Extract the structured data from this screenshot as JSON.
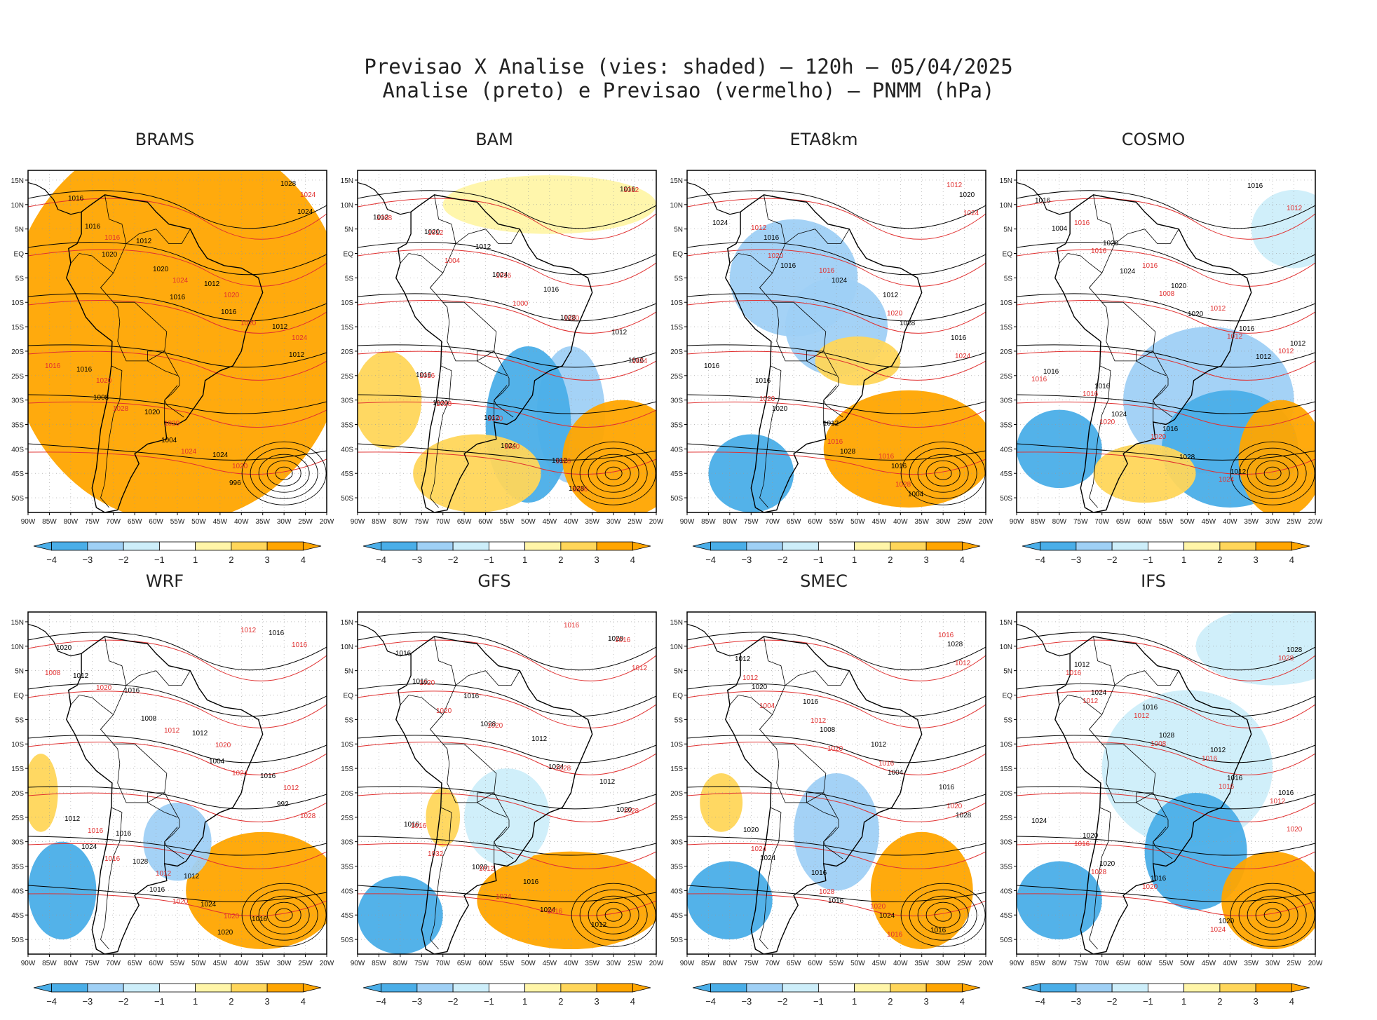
{
  "header": {
    "line1": "Previsao X Analise (vies: shaded) – 120h – 05/04/2025",
    "line2": "Analise (preto) e Previsao (vermelho) – PNMM (hPa)"
  },
  "lon_labels": [
    "90W",
    "85W",
    "80W",
    "75W",
    "70W",
    "65W",
    "60W",
    "55W",
    "50W",
    "45W",
    "40W",
    "35W",
    "30W",
    "25W",
    "20W"
  ],
  "lat_labels": [
    "15N",
    "10N",
    "5N",
    "EQ",
    "5S",
    "10S",
    "15S",
    "20S",
    "25S",
    "30S",
    "35S",
    "40S",
    "45S",
    "50S"
  ],
  "colorbar": {
    "labels": [
      "−4",
      "−3",
      "−2",
      "−1",
      "1",
      "2",
      "3",
      "4"
    ],
    "colors": [
      "#4aaee8",
      "#9fd0f5",
      "#cdeefa",
      "#ffffff",
      "#fff5a8",
      "#ffd65a",
      "#ffa500"
    ]
  },
  "legend": {
    "analysis_color": "#000000",
    "forecast_color": "#e03030"
  },
  "panels": [
    {
      "title": "BRAMS",
      "black_labels": [
        "1016",
        "1012",
        "1012",
        "1012",
        "1016",
        "1020",
        "1024",
        "1028",
        "1016",
        "1020",
        "1016",
        "1012",
        "1008",
        "1004",
        "996",
        "1024",
        "1020",
        "1016"
      ],
      "red_labels": [
        "1020",
        "1024",
        "1020",
        "1020",
        "1020",
        "1024",
        "1016",
        "1024",
        "1020",
        "1016",
        "1028",
        "1024"
      ]
    },
    {
      "title": "BAM",
      "black_labels": [
        "1012",
        "1016",
        "1012",
        "1016",
        "1012",
        "1012",
        "1016",
        "1020",
        "1024",
        "1028",
        "1016",
        "1020",
        "1024",
        "1028",
        "1012"
      ],
      "red_labels": [
        "1016",
        "1020",
        "1016",
        "1012",
        "1012",
        "1016",
        "1020",
        "1024",
        "1028",
        "1020",
        "1016",
        "1008",
        "1004",
        "1000"
      ]
    },
    {
      "title": "ETA8km",
      "black_labels": [
        "1012",
        "1016",
        "1016",
        "1012",
        "1016",
        "1020",
        "1016",
        "1024",
        "1028",
        "1016",
        "1020",
        "1028",
        "1004",
        "1024",
        "1016"
      ],
      "red_labels": [
        "1016",
        "1012",
        "1012",
        "1016",
        "1020",
        "1024",
        "1020",
        "1016",
        "1028",
        "1024",
        "1020"
      ]
    },
    {
      "title": "COSMO",
      "black_labels": [
        "1012",
        "1016",
        "1016",
        "1012",
        "1016",
        "1020",
        "1020",
        "1016",
        "1016",
        "1024",
        "1028",
        "1016",
        "1004",
        "1024",
        "1020",
        "1012"
      ],
      "red_labels": [
        "1016",
        "1016",
        "1012",
        "1012",
        "1016",
        "1020",
        "1024",
        "1012",
        "1016",
        "1008",
        "1012",
        "1016",
        "1020"
      ]
    },
    {
      "title": "WRF",
      "black_labels": [
        "1016",
        "1012",
        "1016",
        "1020",
        "1016",
        "1012",
        "1016",
        "1012",
        "1028",
        "1024",
        "1016",
        "1012",
        "1008",
        "1004",
        "992",
        "1024",
        "1016",
        "1020"
      ],
      "red_labels": [
        "1020",
        "1012",
        "1016",
        "1012",
        "1020",
        "1016",
        "1020",
        "1012",
        "1024",
        "1028",
        "1016",
        "1020",
        "1012",
        "1008"
      ]
    },
    {
      "title": "GFS",
      "black_labels": [
        "1016",
        "1012",
        "1016",
        "1016",
        "1012",
        "1012",
        "1016",
        "1020",
        "1024",
        "1028",
        "1016",
        "1028",
        "1024",
        "1020"
      ],
      "red_labels": [
        "1016",
        "1012",
        "1016",
        "1016",
        "1020",
        "1020",
        "1028",
        "1028",
        "1032",
        "1024",
        "1016",
        "1012",
        "1020"
      ]
    },
    {
      "title": "SMEC",
      "black_labels": [
        "1016",
        "1012",
        "1016",
        "1012",
        "1016",
        "1020",
        "1016",
        "1024",
        "1028",
        "1020",
        "1008",
        "1004",
        "1028",
        "1024",
        "1016"
      ],
      "red_labels": [
        "1020",
        "1016",
        "1012",
        "1012",
        "1016",
        "1020",
        "1024",
        "1028",
        "1016",
        "1012",
        "1004",
        "1020"
      ]
    },
    {
      "title": "IFS",
      "black_labels": [
        "1012",
        "1016",
        "1012",
        "1016",
        "1020",
        "1016",
        "1020",
        "1028",
        "1024",
        "1028",
        "1016",
        "1024",
        "1020"
      ],
      "red_labels": [
        "1016",
        "1012",
        "1016",
        "1012",
        "1016",
        "1020",
        "1024",
        "1028",
        "1012",
        "1008",
        "1016",
        "1020",
        "1028"
      ]
    }
  ]
}
